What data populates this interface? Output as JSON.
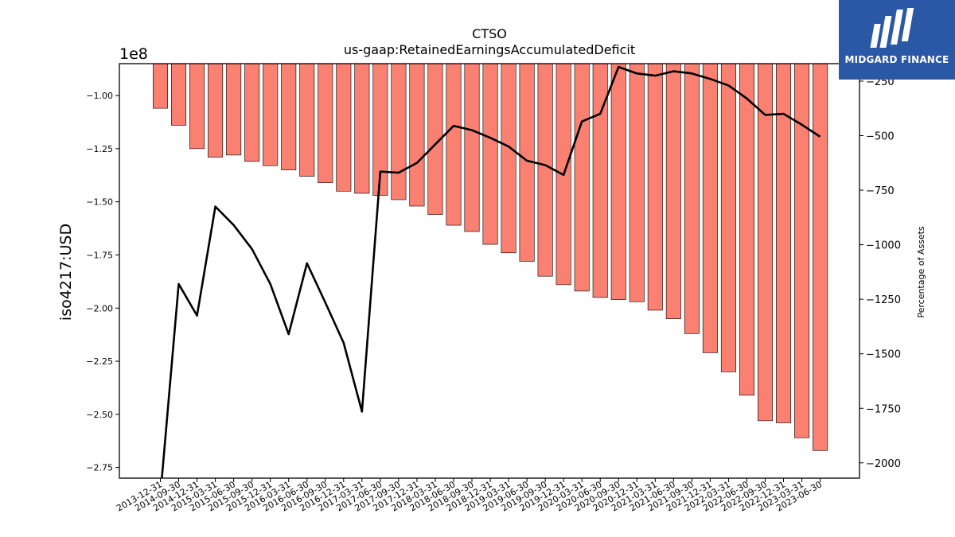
{
  "chart_data": {
    "type": "bar",
    "title": "CTSO",
    "subtitle": "us-gaap:RetainedEarningsAccumulatedDeficit",
    "ylabel": "iso4217:USD",
    "y2label": "Percentage of Assets",
    "y_offset_label": "1e8",
    "ylim": [
      -2.8,
      -0.85
    ],
    "y_scale": 100000000.0,
    "y2lim": [
      -2070,
      -170
    ],
    "yticks": [
      -1.0,
      -1.25,
      -1.5,
      -1.75,
      -2.0,
      -2.25,
      -2.5,
      -2.75
    ],
    "ytick_labels": [
      "−1.00",
      "−1.25",
      "−1.50",
      "−1.75",
      "−2.00",
      "−2.25",
      "−2.50",
      "−2.75"
    ],
    "y2ticks": [
      -250,
      -500,
      -750,
      -1000,
      -1250,
      -1500,
      -1750,
      -2000
    ],
    "y2tick_labels": [
      "−250",
      "−500",
      "−750",
      "−1000",
      "−1250",
      "−1500",
      "−1750",
      "−2000"
    ],
    "categories": [
      "2013-12-31",
      "2014-09-30",
      "2014-12-31",
      "2015-03-31",
      "2015-06-30",
      "2015-09-30",
      "2015-12-31",
      "2016-03-31",
      "2016-06-30",
      "2016-09-30",
      "2016-12-31",
      "2017-03-31",
      "2017-06-30",
      "2017-09-30",
      "2017-12-31",
      "2018-03-31",
      "2018-06-30",
      "2018-09-30",
      "2018-12-31",
      "2019-03-31",
      "2019-06-30",
      "2019-09-30",
      "2019-12-31",
      "2020-03-31",
      "2020-06-30",
      "2020-09-30",
      "2020-12-31",
      "2021-03-31",
      "2021-06-30",
      "2021-09-30",
      "2021-12-31",
      "2022-03-31",
      "2022-06-30",
      "2022-09-30",
      "2022-12-31",
      "2023-03-31",
      "2023-06-30"
    ],
    "series": [
      {
        "axis": "left",
        "type": "bar",
        "color": "#fa8072",
        "values": [
          -1.06,
          -1.14,
          -1.25,
          -1.29,
          -1.28,
          -1.31,
          -1.33,
          -1.35,
          -1.38,
          -1.41,
          -1.45,
          -1.46,
          -1.47,
          -1.49,
          -1.52,
          -1.56,
          -1.61,
          -1.64,
          -1.7,
          -1.74,
          -1.78,
          -1.85,
          -1.89,
          -1.92,
          -1.95,
          -1.96,
          -1.97,
          -2.01,
          -2.05,
          -2.12,
          -2.21,
          -2.3,
          -2.41,
          -2.53,
          -2.54,
          -2.61,
          -2.67
        ]
      },
      {
        "axis": "right",
        "type": "line",
        "color": "#000000",
        "values": [
          -2150,
          -1180,
          -1325,
          -825,
          -910,
          -1020,
          -1180,
          -1410,
          -1085,
          -1265,
          -1450,
          -1765,
          -665,
          -670,
          -625,
          -540,
          -455,
          -475,
          -510,
          -550,
          -615,
          -635,
          -680,
          -435,
          -400,
          -185,
          -215,
          -225,
          -205,
          -215,
          -240,
          -270,
          -330,
          -405,
          -400,
          -450,
          -505
        ]
      }
    ],
    "grid": false,
    "legend": "none"
  },
  "logo": {
    "text": "MIDGARD FINANCE",
    "background": "#2a57a6"
  }
}
